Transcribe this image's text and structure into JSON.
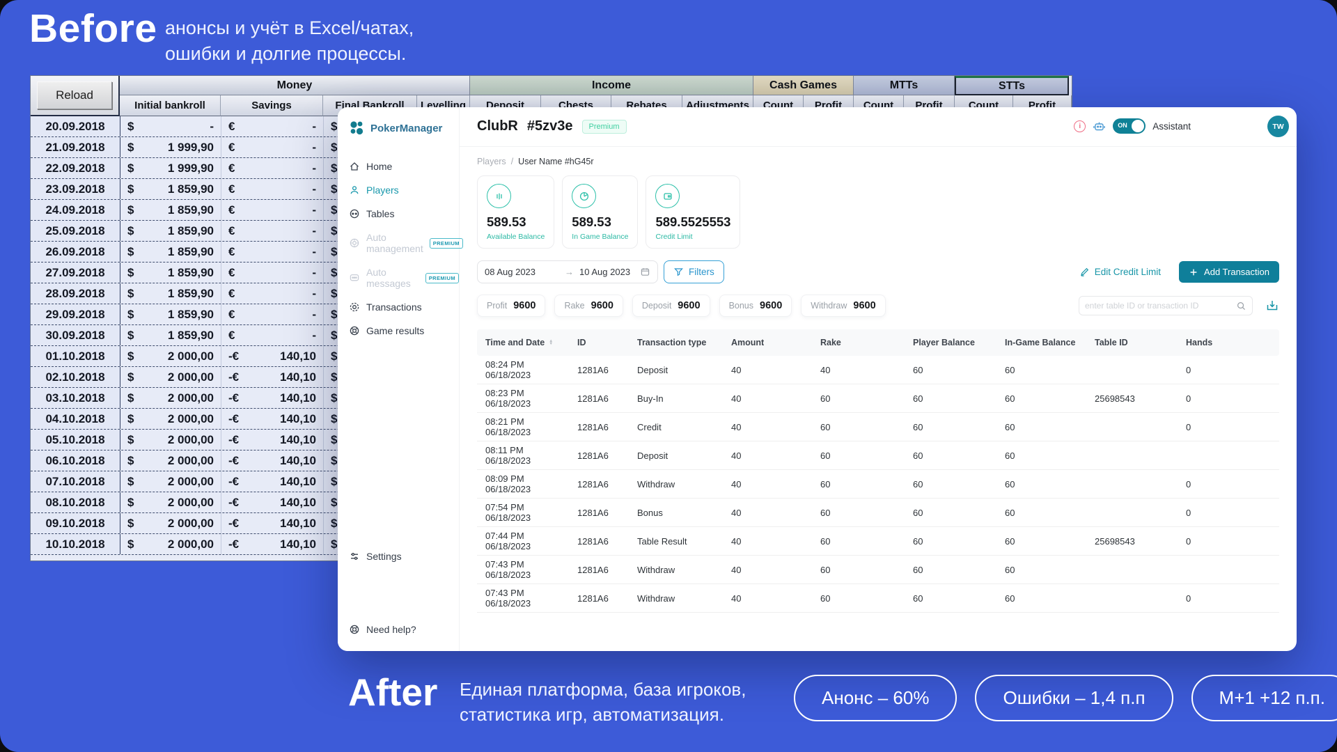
{
  "before": {
    "title": "Before",
    "line1": "анонсы и учёт в Excel/чатах,",
    "line2": "ошибки и долгие процессы."
  },
  "after": {
    "title": "After",
    "line1": "Единая платформа, база игроков,",
    "line2": "статистика игр, автоматизация.",
    "pills": [
      "Анонс – 60%",
      "Ошибки – 1,4 п.п",
      "М+1 +12 п.п."
    ]
  },
  "excel": {
    "reload": "Reload",
    "groups": [
      "Money",
      "Income",
      "Cash Games",
      "MTTs",
      "STTs"
    ],
    "money_cols": [
      "Initial bankroll",
      "Savings",
      "Final Bankroll",
      "Levelling"
    ],
    "income_cols": [
      "Deposit",
      "Chests",
      "Rebates",
      "Adjustments"
    ],
    "pair_cols": [
      "Count",
      "Profit"
    ],
    "rows": [
      [
        "20.09.2018",
        "$",
        "-",
        "€",
        "-",
        "$"
      ],
      [
        "21.09.2018",
        "$",
        "1 999,90",
        "€",
        "-",
        "$"
      ],
      [
        "22.09.2018",
        "$",
        "1 999,90",
        "€",
        "-",
        "$"
      ],
      [
        "23.09.2018",
        "$",
        "1 859,90",
        "€",
        "-",
        "$"
      ],
      [
        "24.09.2018",
        "$",
        "1 859,90",
        "€",
        "-",
        "$"
      ],
      [
        "25.09.2018",
        "$",
        "1 859,90",
        "€",
        "-",
        "$"
      ],
      [
        "26.09.2018",
        "$",
        "1 859,90",
        "€",
        "-",
        "$"
      ],
      [
        "27.09.2018",
        "$",
        "1 859,90",
        "€",
        "-",
        "$"
      ],
      [
        "28.09.2018",
        "$",
        "1 859,90",
        "€",
        "-",
        "$"
      ],
      [
        "29.09.2018",
        "$",
        "1 859,90",
        "€",
        "-",
        "$"
      ],
      [
        "30.09.2018",
        "$",
        "1 859,90",
        "€",
        "-",
        "$"
      ],
      [
        "01.10.2018",
        "$",
        "2 000,00",
        "-€",
        "140,10",
        "$"
      ],
      [
        "02.10.2018",
        "$",
        "2 000,00",
        "-€",
        "140,10",
        "$"
      ],
      [
        "03.10.2018",
        "$",
        "2 000,00",
        "-€",
        "140,10",
        "$"
      ],
      [
        "04.10.2018",
        "$",
        "2 000,00",
        "-€",
        "140,10",
        "$"
      ],
      [
        "05.10.2018",
        "$",
        "2 000,00",
        "-€",
        "140,10",
        "$"
      ],
      [
        "06.10.2018",
        "$",
        "2 000,00",
        "-€",
        "140,10",
        "$"
      ],
      [
        "07.10.2018",
        "$",
        "2 000,00",
        "-€",
        "140,10",
        "$"
      ],
      [
        "08.10.2018",
        "$",
        "2 000,00",
        "-€",
        "140,10",
        "$"
      ],
      [
        "09.10.2018",
        "$",
        "2 000,00",
        "-€",
        "140,10",
        "$"
      ],
      [
        "10.10.2018",
        "$",
        "2 000,00",
        "-€",
        "140,10",
        "$"
      ]
    ]
  },
  "app": {
    "brand": "PokerManager",
    "premium_badge": "PREMIUM",
    "sidebar": [
      {
        "label": "Home",
        "icon": "home-icon",
        "state": "normal"
      },
      {
        "label": "Players",
        "icon": "players-icon",
        "state": "active"
      },
      {
        "label": "Tables",
        "icon": "tables-icon",
        "state": "normal"
      },
      {
        "label": "Auto management",
        "icon": "chip-icon",
        "state": "disabled",
        "premium": true
      },
      {
        "label": "Auto messages",
        "icon": "message-icon",
        "state": "disabled",
        "premium": true
      },
      {
        "label": "Transactions",
        "icon": "transactions-icon",
        "state": "normal"
      },
      {
        "label": "Game results",
        "icon": "results-icon",
        "state": "normal"
      }
    ],
    "sidebar_bottom": [
      "Settings",
      "Need help?"
    ],
    "header": {
      "club": "ClubR",
      "club_id": "#5zv3e",
      "premium": "Premium",
      "toggle_on": "ON",
      "assistant": "Assistant",
      "avatar": "TW"
    },
    "breadcrumb": [
      "Players",
      "/",
      "User Name #hG45r"
    ],
    "cards": [
      {
        "icon": "balance-icon",
        "value": "589.53",
        "label": "Available Balance"
      },
      {
        "icon": "pie-icon",
        "value": "589.53",
        "label": "In Game Balance"
      },
      {
        "icon": "credit-icon",
        "value": "589.5525553",
        "label": "Credit Limit"
      }
    ],
    "date_from": "08 Aug 2023",
    "date_arrow": "→",
    "date_to": "10 Aug 2023",
    "filters": "Filters",
    "edit_credit": "Edit Credit Limit",
    "add_transaction": "Add Transaction",
    "metrics": [
      {
        "label": "Profit",
        "value": "9600"
      },
      {
        "label": "Rake",
        "value": "9600"
      },
      {
        "label": "Deposit",
        "value": "9600"
      },
      {
        "label": "Bonus",
        "value": "9600"
      },
      {
        "label": "Withdraw",
        "value": "9600"
      }
    ],
    "search_placeholder": "enter table ID or transaction ID",
    "table": {
      "columns": [
        "Time and Date",
        "ID",
        "Transaction type",
        "Amount",
        "Rake",
        "Player Balance",
        "In-Game Balance",
        "Table ID",
        "Hands"
      ],
      "rows": [
        [
          "08:24 PM 06/18/2023",
          "1281A6",
          "Deposit",
          "40",
          "40",
          "60",
          "60",
          "",
          "0"
        ],
        [
          "08:23 PM 06/18/2023",
          "1281A6",
          "Buy-In",
          "40",
          "60",
          "60",
          "60",
          "25698543",
          "0"
        ],
        [
          "08:21 PM 06/18/2023",
          "1281A6",
          "Credit",
          "40",
          "60",
          "60",
          "60",
          "",
          "0"
        ],
        [
          "08:11 PM 06/18/2023",
          "1281A6",
          "Deposit",
          "40",
          "60",
          "60",
          "60",
          "",
          ""
        ],
        [
          "08:09 PM 06/18/2023",
          "1281A6",
          "Withdraw",
          "40",
          "60",
          "60",
          "60",
          "",
          "0"
        ],
        [
          "07:54 PM 06/18/2023",
          "1281A6",
          "Bonus",
          "40",
          "60",
          "60",
          "60",
          "",
          "0"
        ],
        [
          "07:44 PM 06/18/2023",
          "1281A6",
          "Table Result",
          "40",
          "60",
          "60",
          "60",
          "25698543",
          "0"
        ],
        [
          "07:43 PM 06/18/2023",
          "1281A6",
          "Withdraw",
          "40",
          "60",
          "60",
          "60",
          "",
          ""
        ],
        [
          "07:43 PM 06/18/2023",
          "1281A6",
          "Withdraw",
          "40",
          "60",
          "60",
          "60",
          "",
          "0"
        ]
      ]
    }
  }
}
